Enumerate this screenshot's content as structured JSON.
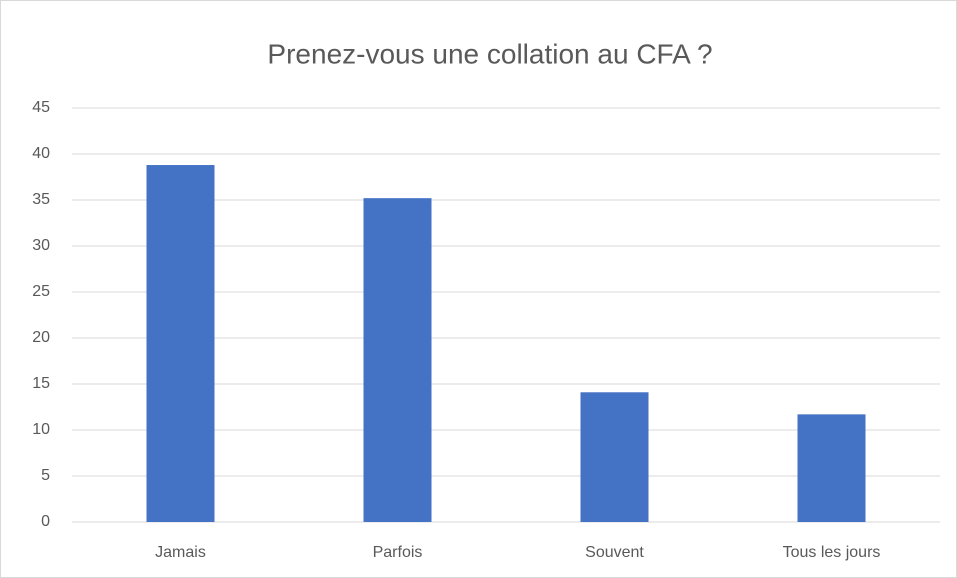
{
  "chart_data": {
    "type": "bar",
    "title": "Prenez-vous une collation au CFA ?",
    "categories": [
      "Jamais",
      "Parfois",
      "Souvent",
      "Tous les jours"
    ],
    "values": [
      38.8,
      35.2,
      14.1,
      11.7
    ],
    "color": "#4472c4",
    "ylim": [
      0,
      45
    ],
    "yticks": [
      0,
      5,
      10,
      15,
      20,
      25,
      30,
      35,
      40,
      45
    ],
    "grid": true
  }
}
